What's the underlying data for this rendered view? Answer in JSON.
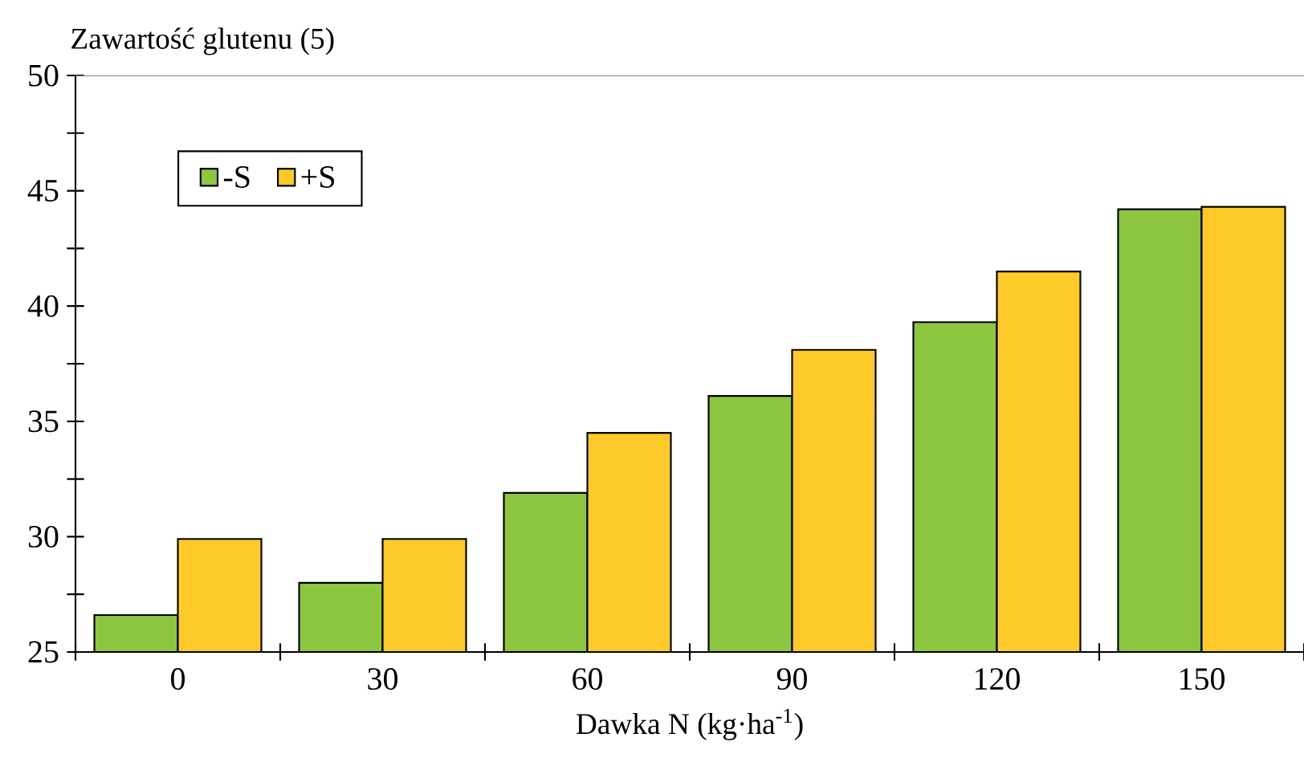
{
  "chart_data": {
    "type": "bar",
    "ylabel": "Zawartość glutenu (5)",
    "xlabel": "Dawka N (kg·ha$^{-1}$)",
    "categories": [
      "0",
      "30",
      "60",
      "90",
      "120",
      "150"
    ],
    "series": [
      {
        "name": "-S",
        "color": "#8dc63f",
        "values": [
          26.6,
          28.0,
          31.9,
          36.1,
          39.3,
          44.2
        ]
      },
      {
        "name": "+S",
        "color": "#fdca2a",
        "values": [
          29.9,
          29.9,
          34.5,
          38.1,
          41.5,
          44.3
        ]
      }
    ],
    "ylim": [
      25,
      50
    ],
    "yticks": [
      25,
      {
        "value": 27.5,
        "label": null
      },
      30,
      {
        "value": 32.5,
        "label": null
      },
      35,
      {
        "value": 37.5,
        "label": null
      },
      40,
      {
        "value": 42.5,
        "label": null
      },
      45,
      {
        "value": 47.5,
        "label": null
      },
      50
    ],
    "legend": "top left"
  }
}
